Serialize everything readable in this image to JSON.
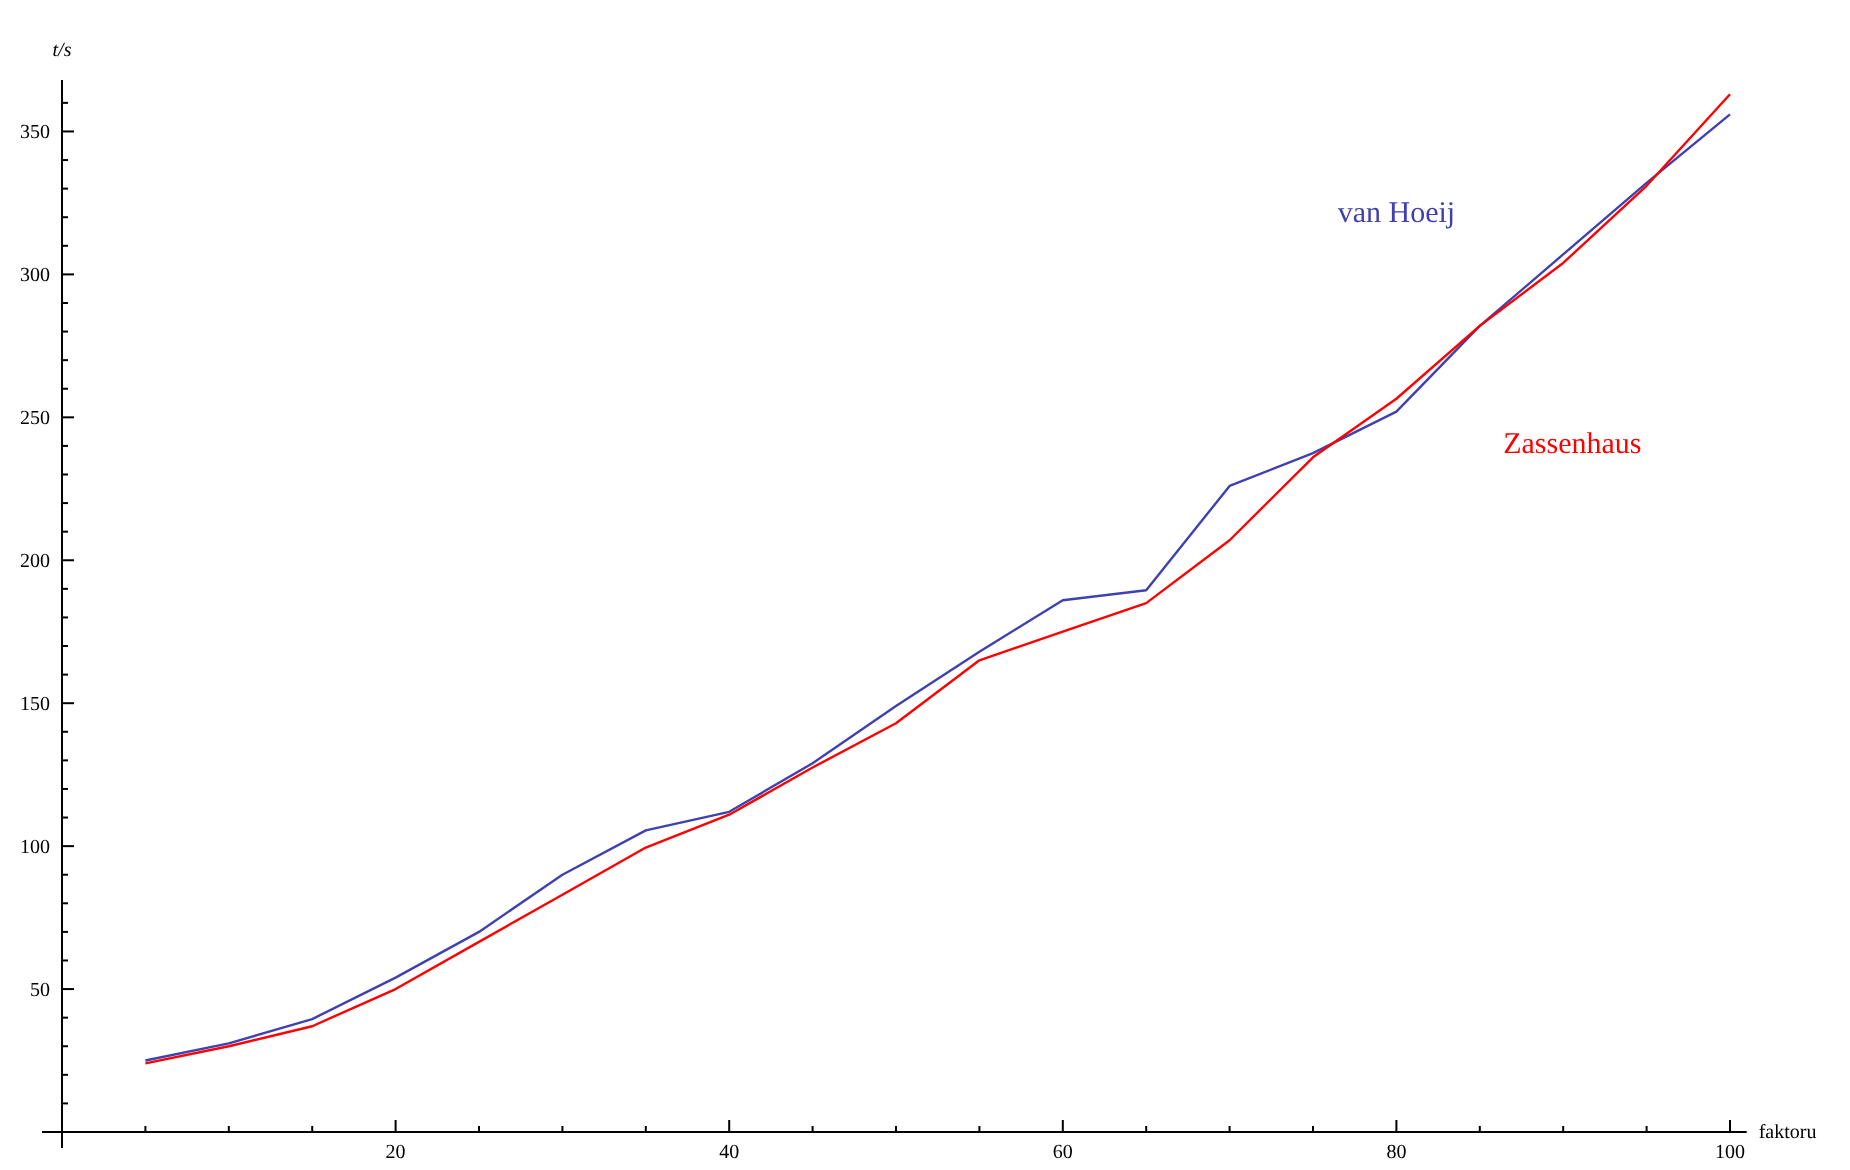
{
  "chart_data": {
    "type": "line",
    "xlabel": "faktoru",
    "ylabel": "t/s",
    "x": [
      5,
      10,
      15,
      20,
      25,
      30,
      35,
      40,
      45,
      50,
      55,
      60,
      65,
      70,
      75,
      80,
      85,
      90,
      95,
      100
    ],
    "series": [
      {
        "name": "van Hoeij",
        "color": "#4040b0",
        "values": [
          25,
          31,
          39.5,
          54,
          70,
          90,
          105.5,
          112,
          129,
          149,
          168,
          186,
          189.5,
          226,
          237.5,
          252,
          282,
          307,
          332,
          356
        ]
      },
      {
        "name": "Zassenhaus",
        "color": "#ff0000",
        "values": [
          24,
          30,
          37,
          50,
          66.5,
          83,
          99.5,
          111,
          127.5,
          143,
          165,
          175,
          185,
          207,
          236,
          256.5,
          282,
          304,
          331,
          363
        ]
      }
    ],
    "xlim": [
      0,
      101
    ],
    "ylim": [
      0,
      368
    ],
    "xticks": [
      {
        "value": 5,
        "label": null
      },
      {
        "value": 10,
        "label": null
      },
      {
        "value": 15,
        "label": null
      },
      20,
      {
        "value": 25,
        "label": null
      },
      {
        "value": 30,
        "label": null
      },
      {
        "value": 35,
        "label": null
      },
      40,
      {
        "value": 45,
        "label": null
      },
      {
        "value": 50,
        "label": null
      },
      {
        "value": 55,
        "label": null
      },
      60,
      {
        "value": 65,
        "label": null
      },
      {
        "value": 70,
        "label": null
      },
      {
        "value": 75,
        "label": null
      },
      80,
      {
        "value": 85,
        "label": null
      },
      {
        "value": 90,
        "label": null
      },
      {
        "value": 95,
        "label": null
      },
      100
    ],
    "yticks": [
      {
        "value": 10,
        "label": null
      },
      {
        "value": 20,
        "label": null
      },
      {
        "value": 30,
        "label": null
      },
      {
        "value": 40,
        "label": null
      },
      50,
      {
        "value": 60,
        "label": null
      },
      {
        "value": 70,
        "label": null
      },
      {
        "value": 80,
        "label": null
      },
      {
        "value": 90,
        "label": null
      },
      100,
      {
        "value": 110,
        "label": null
      },
      {
        "value": 120,
        "label": null
      },
      {
        "value": 130,
        "label": null
      },
      {
        "value": 140,
        "label": null
      },
      150,
      {
        "value": 160,
        "label": null
      },
      {
        "value": 170,
        "label": null
      },
      {
        "value": 180,
        "label": null
      },
      {
        "value": 190,
        "label": null
      },
      200,
      {
        "value": 210,
        "label": null
      },
      {
        "value": 220,
        "label": null
      },
      {
        "value": 230,
        "label": null
      },
      {
        "value": 240,
        "label": null
      },
      250,
      {
        "value": 260,
        "label": null
      },
      {
        "value": 270,
        "label": null
      },
      {
        "value": 280,
        "label": null
      },
      {
        "value": 290,
        "label": null
      },
      300,
      {
        "value": 310,
        "label": null
      },
      {
        "value": 320,
        "label": null
      },
      {
        "value": 330,
        "label": null
      },
      {
        "value": 340,
        "label": null
      },
      350,
      {
        "value": 360,
        "label": null
      }
    ],
    "grid": false,
    "legend": false,
    "marker": "none",
    "line_style": "solid"
  }
}
